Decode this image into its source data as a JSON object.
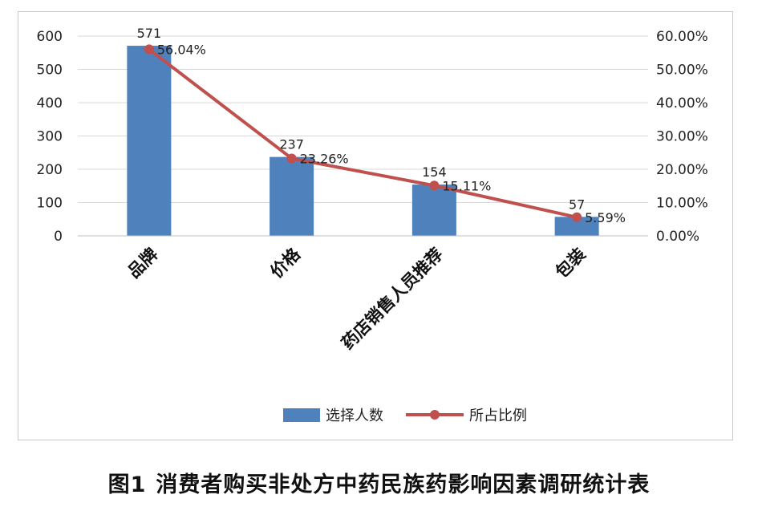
{
  "caption": {
    "figure_number": "图1",
    "title": "消费者购买非处方中药民族药影响因素调研统计表"
  },
  "chart_data": {
    "type": "bar",
    "categories": [
      "品牌",
      "价格",
      "药店销售人员推荐",
      "包装"
    ],
    "series": [
      {
        "name": "选择人数",
        "type": "bar",
        "axis": "left",
        "values": [
          571,
          237,
          154,
          57
        ],
        "labels": [
          "571",
          "237",
          "154",
          "57"
        ],
        "color": "#4f81bd"
      },
      {
        "name": "所占比例",
        "type": "line",
        "axis": "right",
        "values": [
          56.04,
          23.26,
          15.11,
          5.59
        ],
        "labels": [
          "56.04%",
          "23.26%",
          "15.11%",
          "5.59%"
        ],
        "color": "#c0504d"
      }
    ],
    "y_left": {
      "min": 0,
      "max": 600,
      "step": 100,
      "ticks": [
        "0",
        "100",
        "200",
        "300",
        "400",
        "500",
        "600"
      ]
    },
    "y_right": {
      "min": 0,
      "max": 60,
      "step": 10,
      "ticks": [
        "0.00%",
        "10.00%",
        "20.00%",
        "30.00%",
        "40.00%",
        "50.00%",
        "60.00%"
      ]
    },
    "grid": true,
    "legend": "bottom"
  }
}
